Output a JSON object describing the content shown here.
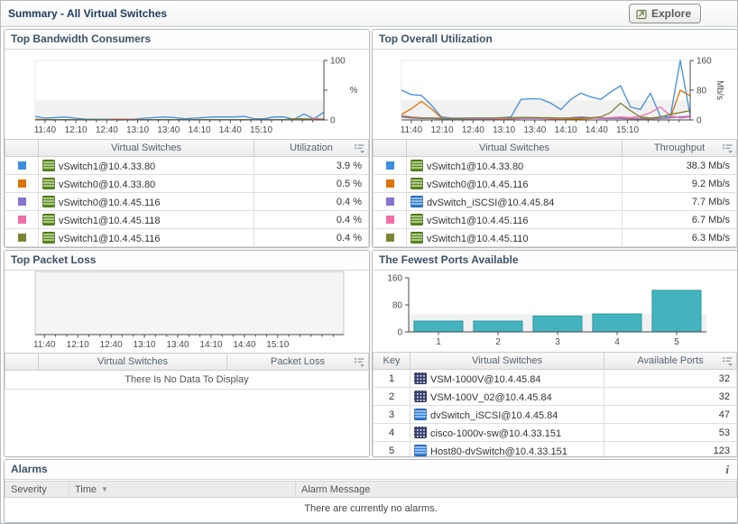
{
  "header": {
    "title": "Summary - All Virtual Switches",
    "explore_label": "Explore"
  },
  "panels": {
    "bandwidth": {
      "title": "Top Bandwidth Consumers",
      "table": {
        "col_key": "",
        "col_name": "Virtual Switches",
        "col_value": "Utilization",
        "rows": [
          {
            "swatch": "#3E8EE0",
            "icon": "vswitch",
            "name": "vSwitch1@10.4.33.80",
            "value": "3.9 %"
          },
          {
            "swatch": "#DD7300",
            "icon": "vswitch",
            "name": "vSwitch0@10.4.33.80",
            "value": "0.5 %"
          },
          {
            "swatch": "#8973CC",
            "icon": "vswitch",
            "name": "vSwitch0@10.4.45.116",
            "value": "0.4 %"
          },
          {
            "swatch": "#EF6FA7",
            "icon": "vswitch",
            "name": "vSwitch1@10.4.45.118",
            "value": "0.4 %"
          },
          {
            "swatch": "#7B8437",
            "icon": "vswitch",
            "name": "vSwitch1@10.4.45.116",
            "value": "0.4 %"
          }
        ]
      }
    },
    "utilization": {
      "title": "Top Overall Utilization",
      "table": {
        "col_key": "",
        "col_name": "Virtual Switches",
        "col_value": "Throughput",
        "rows": [
          {
            "swatch": "#3E8EE0",
            "icon": "vswitch",
            "name": "vSwitch1@10.4.33.80",
            "value": "38.3 Mb/s"
          },
          {
            "swatch": "#DD7300",
            "icon": "vswitch",
            "name": "vSwitch0@10.4.45.116",
            "value": "9.2 Mb/s"
          },
          {
            "swatch": "#8973CC",
            "icon": "dvswitch",
            "name": "dvSwitch_iSCSI@10.4.45.84",
            "value": "7.7 Mb/s"
          },
          {
            "swatch": "#EF6FA7",
            "icon": "vswitch",
            "name": "vSwitch1@10.4.45.116",
            "value": "6.7 Mb/s"
          },
          {
            "swatch": "#7B8437",
            "icon": "vswitch",
            "name": "vSwitch1@10.4.45.110",
            "value": "6.3 Mb/s"
          }
        ]
      }
    },
    "packet_loss": {
      "title": "Top Packet Loss",
      "table": {
        "col_key": "",
        "col_name": "Virtual Switches",
        "col_value": "Packet Loss",
        "rows": [],
        "empty_text": "There Is No Data To Display"
      }
    },
    "ports": {
      "title": "The Fewest Ports Available",
      "table": {
        "col_key": "Key",
        "col_name": "Virtual Switches",
        "col_value": "Available Ports",
        "rows": [
          {
            "key": "1",
            "icon": "cisco",
            "name": "VSM-1000V@10.4.45.84",
            "value": "32"
          },
          {
            "key": "2",
            "icon": "cisco",
            "name": "VSM-100V_02@10.4.45.84",
            "value": "32"
          },
          {
            "key": "3",
            "icon": "dvswitch",
            "name": "dvSwitch_iSCSI@10.4.45.84",
            "value": "47"
          },
          {
            "key": "4",
            "icon": "cisco",
            "name": "cisco-1000v-sw@10.4.33.151",
            "value": "53"
          },
          {
            "key": "5",
            "icon": "dvswitch",
            "name": "Host80-dvSwitch@10.4.33.151",
            "value": "123"
          }
        ]
      }
    },
    "alarms": {
      "title": "Alarms",
      "info_icon": "i",
      "columns": [
        "Severity",
        "Time",
        "Alarm Message"
      ],
      "sorted_column": "Time",
      "empty_text": "There are currently no alarms."
    }
  },
  "chart_data": [
    {
      "id": "bandwidth",
      "type": "line",
      "title": "Top Bandwidth Consumers",
      "ylabel": "%",
      "ylim": [
        0,
        100
      ],
      "yticks": [
        0,
        50,
        100
      ],
      "ytick_labels": [
        "0",
        "",
        "100"
      ],
      "x_tick_labels": [
        "11:40",
        "12:10",
        "12:40",
        "13:10",
        "13:40",
        "14:10",
        "14:40",
        "15:10"
      ],
      "axis_side": "right",
      "grid": false,
      "legend": "table-below",
      "series": [
        {
          "name": "vSwitch1@10.4.33.80",
          "color": "#3E8EE0",
          "values": [
            6,
            3,
            4,
            5,
            3,
            1.5,
            1,
            1,
            1,
            1,
            1.5,
            3,
            4,
            5,
            4,
            2,
            3,
            4,
            5,
            5,
            5,
            6,
            2,
            2,
            5,
            5,
            1,
            10,
            2,
            13
          ]
        },
        {
          "name": "vSwitch0@10.4.33.80",
          "color": "#DD7300",
          "values": [
            1,
            0.8,
            0.6,
            0.5,
            0.5,
            0.5,
            0.5,
            0.5,
            0.5,
            0.5,
            0.5,
            0.5,
            0.5,
            0.5,
            0.5,
            0.5,
            0.5,
            0.5,
            0.5,
            0.5,
            0.5,
            0.5,
            0.5,
            0.5,
            0.5,
            0.5,
            0.5,
            0.5,
            1,
            1
          ]
        },
        {
          "name": "vSwitch0@10.4.45.116",
          "color": "#8973CC",
          "values": [
            0.4,
            0.4,
            0.4,
            0.4,
            0.4,
            0.4,
            0.4,
            0.4,
            0.4,
            0.4,
            0.4,
            0.4,
            0.4,
            0.4,
            0.4,
            0.4,
            0.4,
            0.4,
            0.4,
            0.4,
            0.4,
            0.4,
            0.4,
            0.4,
            0.4,
            0.4,
            0.4,
            0.4,
            0.4,
            0.4
          ]
        },
        {
          "name": "vSwitch1@10.4.45.118",
          "color": "#EF6FA7",
          "values": [
            0.5,
            0.4,
            0.4,
            0.4,
            0.4,
            0.4,
            0.4,
            0.4,
            1.5,
            1.5,
            1,
            0.4,
            0.4,
            0.4,
            0.4,
            0.4,
            0.4,
            0.4,
            0.4,
            0.4,
            0.4,
            0.4,
            0.4,
            0.4,
            0.4,
            0.4,
            0.4,
            1,
            3,
            1
          ]
        },
        {
          "name": "vSwitch1@10.4.45.116",
          "color": "#7B8437",
          "values": [
            0.5,
            0.5,
            0.5,
            0.5,
            0.5,
            0.5,
            0.5,
            0.5,
            0.5,
            0.5,
            0.5,
            0.5,
            0.5,
            0.5,
            0.5,
            0.5,
            0.5,
            0.5,
            0.5,
            0.5,
            0.5,
            0.5,
            0.5,
            0.5,
            0.5,
            0.5,
            2,
            2,
            0.5,
            1
          ]
        }
      ]
    },
    {
      "id": "utilization",
      "type": "line",
      "title": "Top Overall Utilization",
      "ylabel": "Mb/s",
      "ylim": [
        0,
        160
      ],
      "yticks": [
        0,
        80,
        160
      ],
      "ytick_labels": [
        "0",
        "80",
        "160"
      ],
      "x_tick_labels": [
        "11:40",
        "12:10",
        "12:40",
        "13:10",
        "13:40",
        "14:10",
        "14:40",
        "15:10"
      ],
      "axis_side": "right",
      "grid": false,
      "legend": "table-below",
      "series": [
        {
          "name": "vSwitch1@10.4.33.80",
          "color": "#3E8EE0",
          "values": [
            80,
            68,
            66,
            40,
            8,
            5,
            5,
            5,
            5,
            5,
            6,
            8,
            55,
            57,
            56,
            45,
            28,
            55,
            72,
            62,
            55,
            75,
            92,
            35,
            28,
            72,
            10,
            8,
            160,
            12
          ]
        },
        {
          "name": "vSwitch0@10.4.45.116",
          "color": "#DD7300",
          "values": [
            15,
            30,
            50,
            30,
            6,
            3,
            3,
            3,
            3,
            3,
            3,
            3,
            4,
            4,
            4,
            3,
            3,
            3,
            3,
            4,
            6,
            5,
            4,
            3,
            3,
            3,
            4,
            5,
            80,
            65
          ]
        },
        {
          "name": "dvSwitch_iSCSI@10.4.45.84",
          "color": "#8973CC",
          "values": [
            8,
            5,
            4,
            4,
            3,
            3,
            3,
            3,
            3,
            3,
            4,
            4,
            4,
            4,
            4,
            4,
            4,
            6,
            8,
            6,
            4,
            4,
            4,
            4,
            4,
            4,
            4,
            6,
            8,
            10
          ]
        },
        {
          "name": "vSwitch1@10.4.45.116",
          "color": "#EF6FA7",
          "values": [
            12,
            8,
            6,
            5,
            5,
            4,
            4,
            4,
            4,
            4,
            4,
            5,
            5,
            5,
            5,
            4,
            4,
            5,
            6,
            5,
            5,
            6,
            8,
            6,
            10,
            20,
            35,
            12,
            5,
            8
          ]
        },
        {
          "name": "vSwitch1@10.4.45.110",
          "color": "#7B8437",
          "values": [
            10,
            6,
            5,
            5,
            4,
            4,
            4,
            5,
            5,
            5,
            6,
            6,
            7,
            7,
            6,
            6,
            5,
            5,
            5,
            6,
            8,
            20,
            45,
            25,
            8,
            5,
            8,
            15,
            20,
            25
          ]
        }
      ]
    },
    {
      "id": "packet_loss",
      "type": "line",
      "title": "Top Packet Loss",
      "ylabel": "",
      "ylim": [
        0,
        100
      ],
      "yticks": [],
      "ytick_labels": [],
      "x_tick_labels": [
        "11:40",
        "12:10",
        "12:40",
        "13:10",
        "13:40",
        "14:10",
        "14:40",
        "15:10"
      ],
      "axis_side": "none",
      "grid": false,
      "series": [],
      "note": "There Is No Data To Display"
    },
    {
      "id": "ports",
      "type": "bar",
      "title": "The Fewest Ports Available",
      "categories": [
        "1",
        "2",
        "3",
        "4",
        "5"
      ],
      "values": [
        32,
        32,
        47,
        53,
        123
      ],
      "ylim": [
        0,
        160
      ],
      "yticks": [
        0,
        80,
        160
      ],
      "ytick_labels": [
        "0",
        "80",
        "160"
      ],
      "axis_side": "left",
      "grid": false,
      "bar_color": "#44B3BE",
      "bar_border": "#2E98A6"
    }
  ]
}
